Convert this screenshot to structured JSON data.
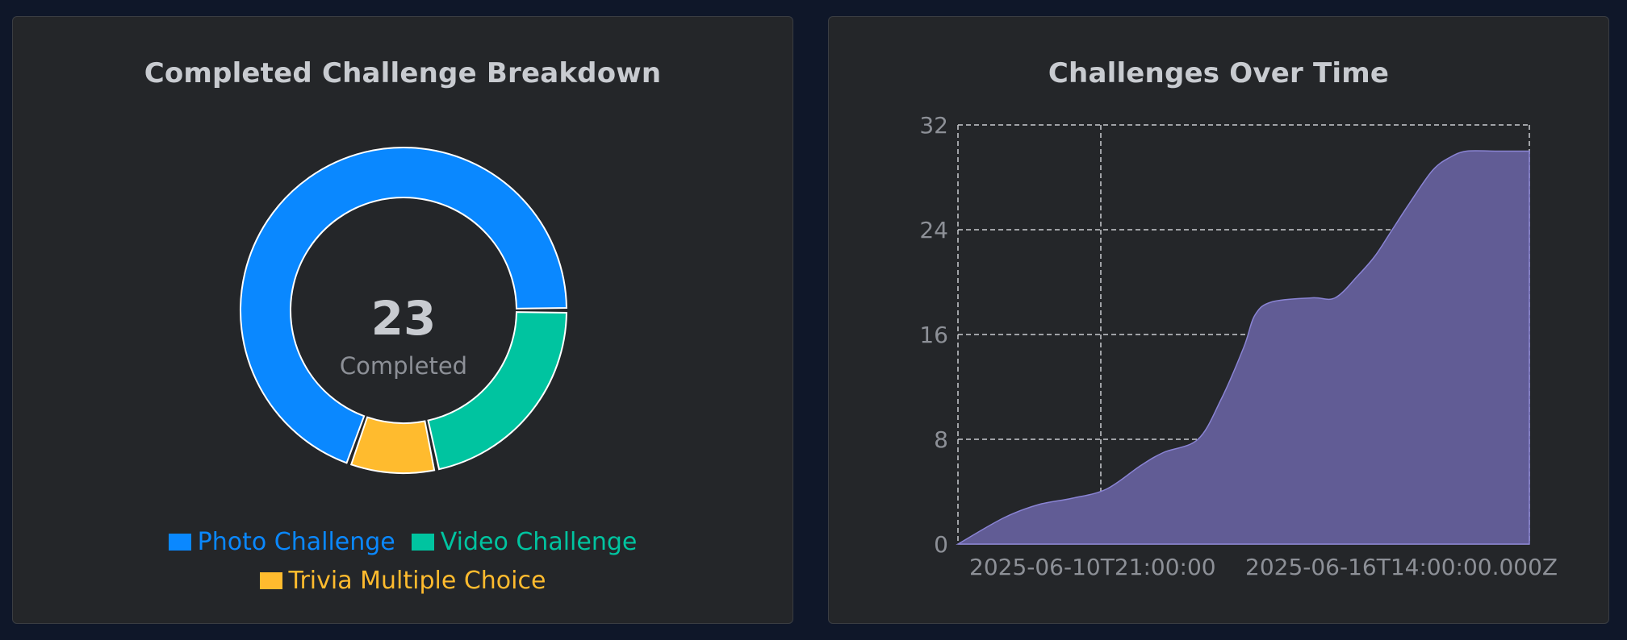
{
  "colors": {
    "page_bg": "#0f1729",
    "panel_bg": "#242629",
    "photo": "#0a88ff",
    "video": "#00c4a0",
    "trivia": "#ffbb2e",
    "area_fill": "#615c95",
    "area_stroke": "#8a84d4"
  },
  "chart_data": [
    {
      "type": "pie",
      "title": "Completed Challenge Breakdown",
      "center_value": "23",
      "center_label": "Completed",
      "legend_placement": "bottom",
      "slices": [
        {
          "name": "Photo Challenge",
          "value": 16,
          "color": "#0a88ff"
        },
        {
          "name": "Video Challenge",
          "value": 5,
          "color": "#00c4a0"
        },
        {
          "name": "Trivia Multiple Choice",
          "value": 2,
          "color": "#ffbb2e"
        }
      ]
    },
    {
      "type": "area",
      "title": "Challenges Over Time",
      "xlabel": "",
      "ylabel": "",
      "ylim": [
        0,
        32
      ],
      "yticks": [
        "0",
        "8",
        "16",
        "24",
        "32"
      ],
      "xtick_labels": [
        "2025-06-10T21:00:00",
        "2025-06-16T14:00:00.000Z"
      ],
      "grid": true,
      "x": [
        0,
        0.08,
        0.14,
        0.2,
        0.26,
        0.32,
        0.36,
        0.42,
        0.46,
        0.5,
        0.52,
        0.55,
        0.62,
        0.66,
        0.7,
        0.73,
        0.76,
        0.79,
        0.83,
        0.86,
        0.89,
        0.94,
        1.0
      ],
      "values": [
        0,
        2,
        3,
        3.5,
        4.2,
        6,
        7,
        8,
        11,
        15,
        17.5,
        18.5,
        18.8,
        18.8,
        20.5,
        22,
        24,
        26,
        28.5,
        29.5,
        30,
        30,
        30
      ],
      "series": [
        {
          "values": [
            0,
            2,
            3,
            3.5,
            4.2,
            6,
            7,
            8,
            11,
            15,
            17.5,
            18.5,
            18.8,
            18.8,
            20.5,
            22,
            24,
            26,
            28.5,
            29.5,
            30,
            30,
            30
          ]
        }
      ]
    }
  ]
}
